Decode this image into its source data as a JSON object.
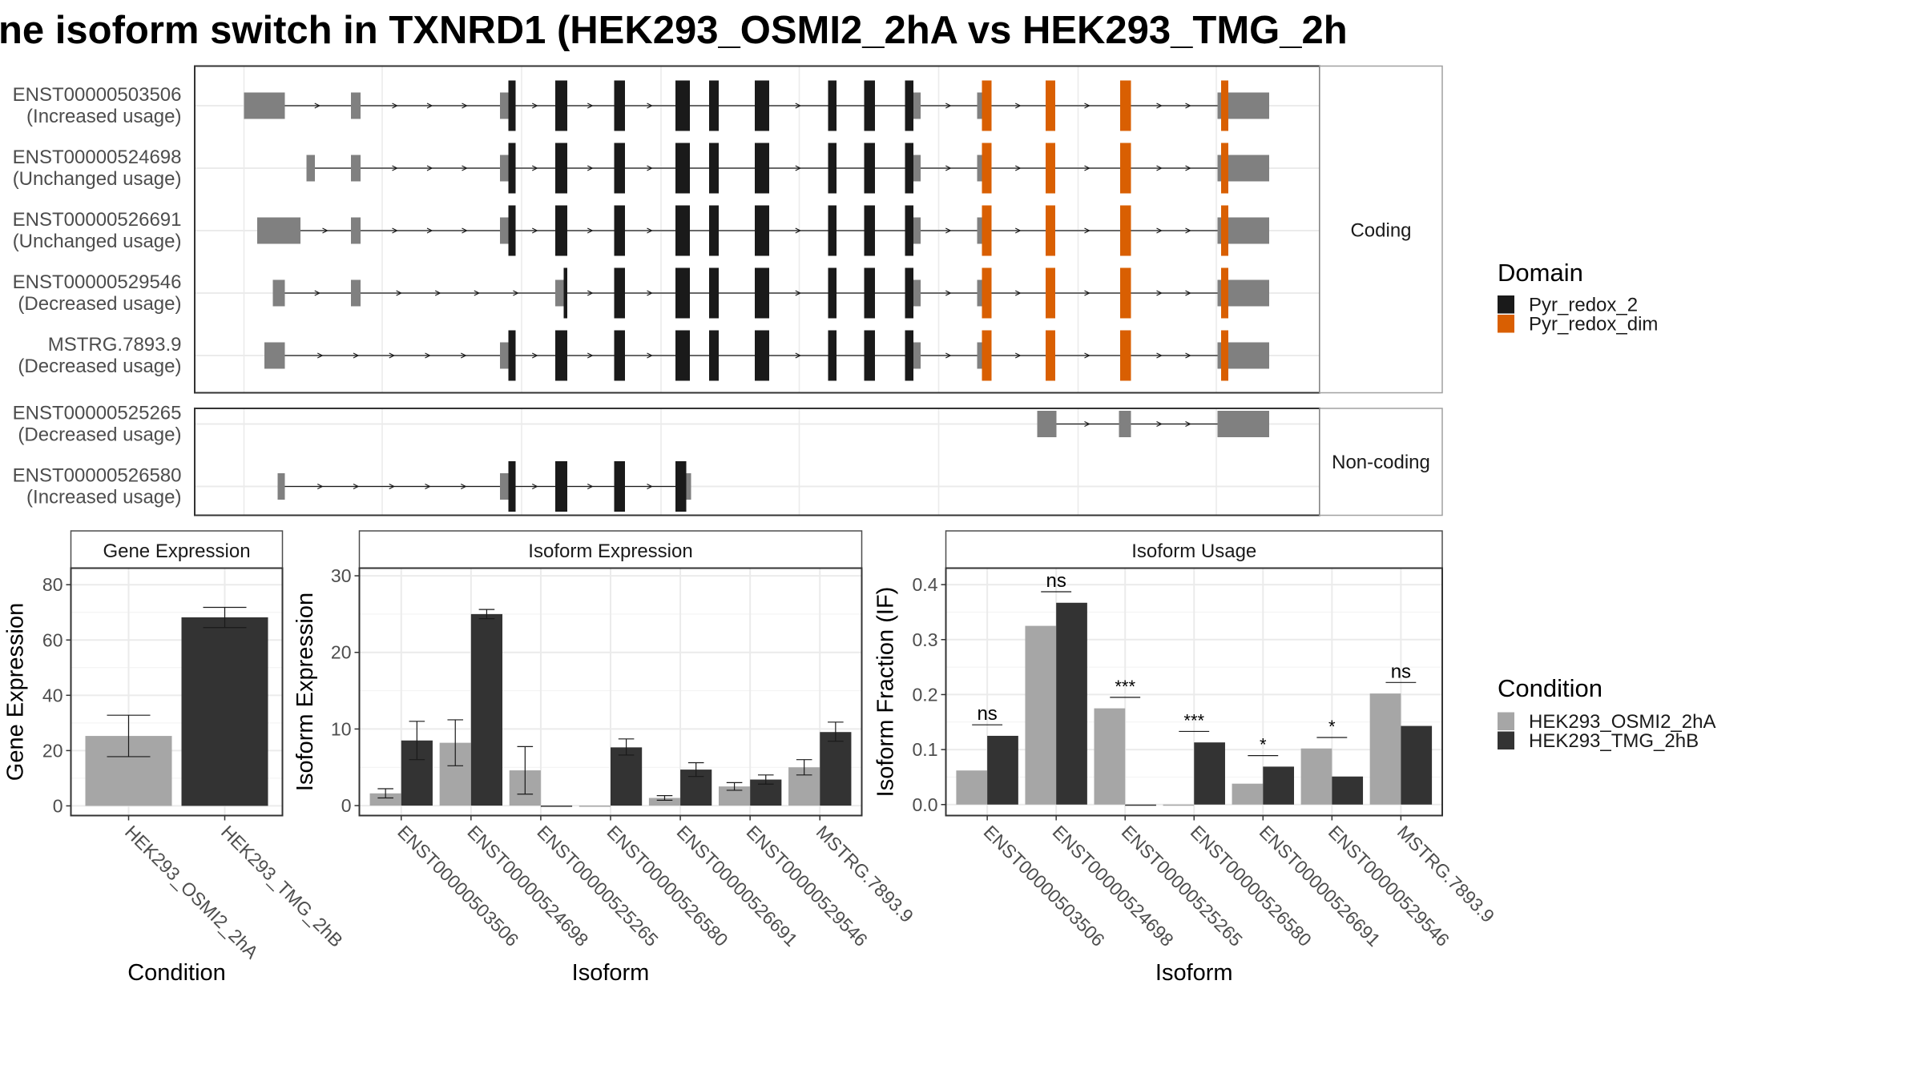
{
  "title": "ne isoform switch in TXNRD1 (HEK293_OSMI2_2hA vs HEK293_TMG_2h",
  "colors": {
    "utr": "#808080",
    "pyr_redox_2": "#1a1a1a",
    "pyr_redox_dim": "#d95f02",
    "cond_a": "#a6a6a6",
    "cond_b": "#333333",
    "panel_border": "#333333",
    "grid": "#ebebeb",
    "strip_bg": "#ffffff"
  },
  "structure": {
    "coding_label": "Coding",
    "noncoding_label": "Non-coding",
    "coding": [
      {
        "id": "ENST00000503506",
        "usage": "(Increased usage)",
        "utr": [
          [
            203,
            237
          ],
          [
            292,
            300
          ],
          [
            416,
            423
          ],
          [
            760,
            766
          ],
          [
            813,
            817
          ],
          [
            1013,
            1020
          ],
          [
            1020,
            1056
          ]
        ],
        "cds": [
          [
            423,
            429
          ],
          [
            462,
            472
          ],
          [
            511,
            520
          ],
          [
            562,
            574
          ],
          [
            590,
            598
          ],
          [
            628,
            640
          ],
          [
            689,
            696
          ],
          [
            719,
            728
          ],
          [
            753,
            760
          ]
        ],
        "dim": [
          [
            817,
            825
          ],
          [
            870,
            878
          ],
          [
            932,
            941
          ],
          [
            1016,
            1022
          ]
        ],
        "intron": [
          203,
          1056
        ]
      },
      {
        "id": "ENST00000524698",
        "usage": "(Unchanged usage)",
        "utr": [
          [
            255,
            262
          ],
          [
            292,
            300
          ],
          [
            416,
            423
          ],
          [
            760,
            766
          ],
          [
            813,
            817
          ],
          [
            1013,
            1020
          ],
          [
            1020,
            1056
          ]
        ],
        "cds": [
          [
            423,
            429
          ],
          [
            462,
            472
          ],
          [
            511,
            520
          ],
          [
            562,
            574
          ],
          [
            590,
            598
          ],
          [
            628,
            640
          ],
          [
            689,
            696
          ],
          [
            719,
            728
          ],
          [
            753,
            760
          ]
        ],
        "dim": [
          [
            817,
            825
          ],
          [
            870,
            878
          ],
          [
            932,
            941
          ],
          [
            1016,
            1022
          ]
        ],
        "intron": [
          255,
          1056
        ]
      },
      {
        "id": "ENST00000526691",
        "usage": "(Unchanged usage)",
        "utr": [
          [
            214,
            250
          ],
          [
            292,
            300
          ],
          [
            416,
            423
          ],
          [
            760,
            766
          ],
          [
            813,
            817
          ],
          [
            1013,
            1020
          ],
          [
            1020,
            1056
          ]
        ],
        "cds": [
          [
            423,
            429
          ],
          [
            462,
            472
          ],
          [
            511,
            520
          ],
          [
            562,
            574
          ],
          [
            590,
            598
          ],
          [
            628,
            640
          ],
          [
            689,
            696
          ],
          [
            719,
            728
          ],
          [
            753,
            760
          ]
        ],
        "dim": [
          [
            817,
            825
          ],
          [
            870,
            878
          ],
          [
            932,
            941
          ],
          [
            1016,
            1022
          ]
        ],
        "intron": [
          214,
          1056
        ]
      },
      {
        "id": "ENST00000529546",
        "usage": "(Decreased usage)",
        "utr": [
          [
            227,
            237
          ],
          [
            292,
            300
          ],
          [
            462,
            469
          ],
          [
            760,
            766
          ],
          [
            813,
            817
          ],
          [
            1013,
            1020
          ],
          [
            1020,
            1056
          ]
        ],
        "cds": [
          [
            469,
            472
          ],
          [
            511,
            520
          ],
          [
            562,
            574
          ],
          [
            590,
            598
          ],
          [
            628,
            640
          ],
          [
            689,
            696
          ],
          [
            719,
            728
          ],
          [
            753,
            760
          ]
        ],
        "dim": [
          [
            817,
            825
          ],
          [
            870,
            878
          ],
          [
            932,
            941
          ],
          [
            1016,
            1022
          ]
        ],
        "intron": [
          227,
          1056
        ]
      },
      {
        "id": "MSTRG.7893.9",
        "usage": "(Decreased usage)",
        "utr": [
          [
            220,
            237
          ],
          [
            416,
            423
          ],
          [
            760,
            766
          ],
          [
            813,
            817
          ],
          [
            1013,
            1020
          ],
          [
            1020,
            1056
          ]
        ],
        "cds": [
          [
            423,
            429
          ],
          [
            462,
            472
          ],
          [
            511,
            520
          ],
          [
            562,
            574
          ],
          [
            590,
            598
          ],
          [
            628,
            640
          ],
          [
            689,
            696
          ],
          [
            719,
            728
          ],
          [
            753,
            760
          ]
        ],
        "dim": [
          [
            817,
            825
          ],
          [
            870,
            878
          ],
          [
            932,
            941
          ],
          [
            1016,
            1022
          ]
        ],
        "intron": [
          220,
          1056
        ]
      }
    ],
    "noncoding": [
      {
        "id": "ENST00000525265",
        "usage": "(Decreased usage)",
        "utr": [
          [
            863,
            879
          ],
          [
            931,
            941
          ],
          [
            1013,
            1056
          ]
        ],
        "cds": [],
        "dim": [],
        "intron": [
          863,
          1056
        ]
      },
      {
        "id": "ENST00000526580",
        "usage": "(Increased usage)",
        "utr": [
          [
            231,
            237
          ],
          [
            416,
            423
          ],
          [
            571,
            575
          ]
        ],
        "cds": [
          [
            423,
            429
          ],
          [
            462,
            472
          ],
          [
            511,
            520
          ],
          [
            562,
            571
          ]
        ],
        "dim": [],
        "intron": [
          231,
          575
        ]
      }
    ]
  },
  "legends": {
    "domain": {
      "title": "Domain",
      "items": [
        {
          "label": "Pyr_redox_2",
          "color": "#1a1a1a"
        },
        {
          "label": "Pyr_redox_dim",
          "color": "#d95f02"
        }
      ]
    },
    "condition": {
      "title": "Condition",
      "items": [
        {
          "label": "HEK293_OSMI2_2hA",
          "color": "#a6a6a6"
        },
        {
          "label": "HEK293_TMG_2hB",
          "color": "#333333"
        }
      ]
    }
  },
  "chart_data": [
    {
      "type": "bar",
      "title": "Gene Expression",
      "xlabel": "Condition",
      "ylabel": "Gene Expression",
      "ylim": [
        -3.5,
        86
      ],
      "yticks": [
        0,
        20,
        40,
        60,
        80
      ],
      "categories": [
        "HEK293_OSMI2_2hA",
        "HEK293_TMG_2hB"
      ],
      "values": [
        25.3,
        68.2
      ],
      "err_low": [
        17.8,
        64.5
      ],
      "err_high": [
        32.8,
        71.8
      ]
    },
    {
      "type": "bar",
      "title": "Isoform Expression",
      "xlabel": "Isoform",
      "ylabel": "Isoform Expression",
      "ylim": [
        -1.3,
        31
      ],
      "yticks": [
        0,
        10,
        20,
        30
      ],
      "categories": [
        "ENST00000503506",
        "ENST00000524698",
        "ENST00000525265",
        "ENST00000526580",
        "ENST00000526691",
        "ENST00000529546",
        "MSTRG.7893.9"
      ],
      "series": [
        {
          "name": "HEK293_OSMI2_2hA",
          "values": [
            1.6,
            8.2,
            4.6,
            0.0,
            1.0,
            2.5,
            5.0
          ],
          "err_low": [
            1.0,
            5.2,
            1.5,
            null,
            0.7,
            2.0,
            4.0
          ],
          "err_high": [
            2.2,
            11.2,
            7.7,
            null,
            1.3,
            3.0,
            6.0
          ]
        },
        {
          "name": "HEK293_TMG_2hB",
          "values": [
            8.5,
            25.0,
            0.0,
            7.6,
            4.7,
            3.4,
            9.6
          ],
          "err_low": [
            6.0,
            24.4,
            null,
            6.6,
            3.8,
            2.8,
            8.4
          ],
          "err_high": [
            11.0,
            25.6,
            null,
            8.7,
            5.6,
            4.0,
            10.9
          ]
        }
      ]
    },
    {
      "type": "bar",
      "title": "Isoform Usage",
      "xlabel": "Isoform",
      "ylabel": "Isoform Fraction (IF)",
      "ylim": [
        -0.02,
        0.43
      ],
      "yticks": [
        0.0,
        0.1,
        0.2,
        0.3,
        0.4
      ],
      "ytick_labels": [
        "0.0",
        "0.1",
        "0.2",
        "0.3",
        "0.4"
      ],
      "categories": [
        "ENST00000503506",
        "ENST00000524698",
        "ENST00000525265",
        "ENST00000526580",
        "ENST00000526691",
        "ENST00000529546",
        "MSTRG.7893.9"
      ],
      "series": [
        {
          "name": "HEK293_OSMI2_2hA",
          "values": [
            0.062,
            0.325,
            0.175,
            0.0,
            0.038,
            0.102,
            0.202
          ]
        },
        {
          "name": "HEK293_TMG_2hB",
          "values": [
            0.125,
            0.367,
            0.0,
            0.113,
            0.069,
            0.051,
            0.143
          ]
        }
      ],
      "significance": [
        "ns",
        "ns",
        "***",
        "***",
        "*",
        "*",
        "ns"
      ],
      "sig_y": [
        0.145,
        0.387,
        0.195,
        0.133,
        0.089,
        0.122,
        0.222
      ]
    }
  ]
}
